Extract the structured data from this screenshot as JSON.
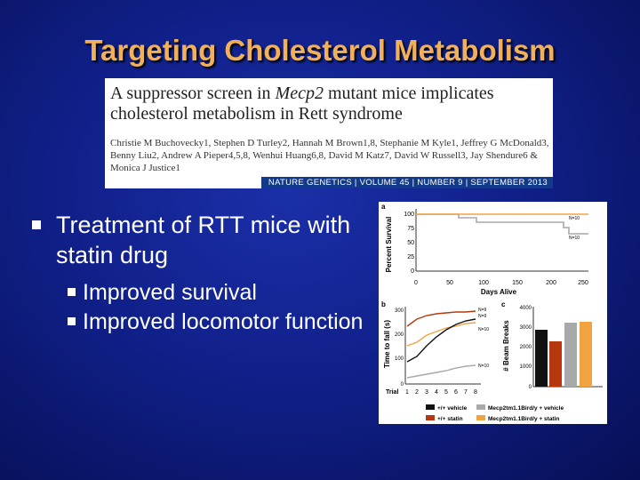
{
  "slide": {
    "title": "Targeting Cholesterol Metabolism"
  },
  "paper": {
    "title_part1": "A suppressor screen in ",
    "title_gene": "Mecp2",
    "title_part2": " mutant mice implicates cholesterol metabolism in Rett syndrome",
    "authors": "Christie M Buchovecky1, Stephen D Turley2, Hannah M Brown1,8, Stephanie M Kyle1, Jeffrey G McDonald3, Benny Liu2, Andrew A Pieper4,5,8, Wenhui Huang6,8, David M Katz7, David W Russell3, Jay Shendure6 & Monica J Justice1",
    "journal": "NATURE GENETICS | VOLUME 45 | NUMBER 9 | SEPTEMBER 2013"
  },
  "bullets": {
    "main": "Treatment of RTT mice with statin drug",
    "sub1": "Improved survival",
    "sub2": "Improved locomotor function"
  },
  "figure": {
    "colors": {
      "wt_vehicle": "#111111",
      "wt_statin": "#b5380f",
      "mut_vehicle": "#a9a9a9",
      "mut_statin": "#f0a340"
    },
    "panel_a": {
      "label": "a",
      "ylabel": "Percent Survival",
      "xlabel": "Days Alive",
      "yticks": [
        "100",
        "75",
        "50",
        "25",
        "0"
      ],
      "xticks": [
        "0",
        "50",
        "100",
        "150",
        "200",
        "250"
      ],
      "n_labels": [
        "N=10",
        "N=10"
      ]
    },
    "panel_b": {
      "label": "b",
      "ylabel": "Time to fall (s)",
      "xlabel": "Trial",
      "yticks": [
        "300",
        "200",
        "100",
        "0"
      ],
      "xticks": [
        "1",
        "2",
        "3",
        "4",
        "5",
        "6",
        "7",
        "8"
      ],
      "n_labels": [
        "N=9",
        "N=9",
        "N=10",
        "N=10"
      ]
    },
    "panel_c": {
      "label": "c",
      "ylabel": "# Beam Breaks",
      "yticks": [
        "4000",
        "3000",
        "2000",
        "1000",
        "0"
      ]
    },
    "legend": [
      {
        "label": "+/+ vehicle",
        "color": "#111111"
      },
      {
        "label": "+/+ statin",
        "color": "#b5380f"
      },
      {
        "label": "Mecp2tm1.1Bird/y + vehicle",
        "color": "#a9a9a9"
      },
      {
        "label": "Mecp2tm1.1Bird/y + statin",
        "color": "#f0a340"
      }
    ]
  }
}
